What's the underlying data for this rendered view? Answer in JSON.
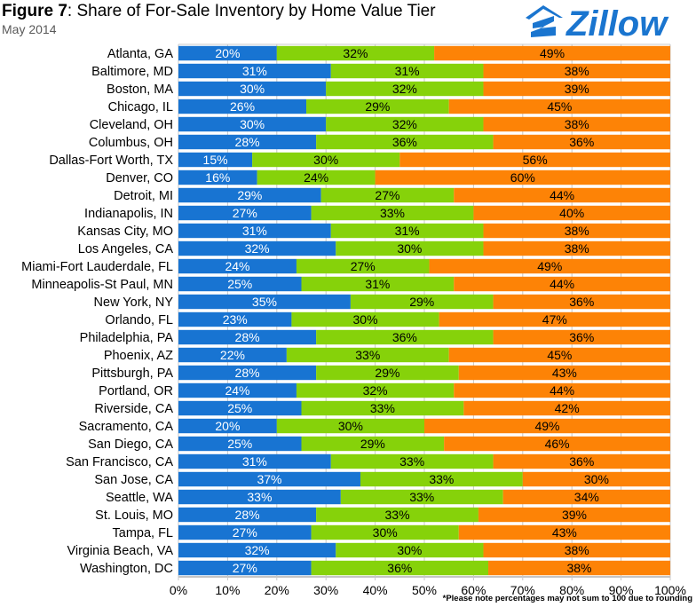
{
  "header": {
    "figure_label": "Figure 7",
    "title_rest": ": Share of For-Sale Inventory by Home Value Tier",
    "subtitle": "May 2014"
  },
  "logo": {
    "text": "Zillow",
    "color": "#1a75cf",
    "icon": "zillow-house-icon"
  },
  "footnote": "*Please note percentages may not sum to 100 due to rounding",
  "colors": {
    "bottom": "#1874d2",
    "middle": "#86d20a",
    "top": "#fd8306",
    "grid": "#c8c8c8"
  },
  "chart_data": {
    "type": "bar",
    "orientation": "horizontal",
    "stacked": true,
    "categories": [
      "Atlanta, GA",
      "Baltimore, MD",
      "Boston, MA",
      "Chicago, IL",
      "Cleveland, OH",
      "Columbus, OH",
      "Dallas-Fort Worth, TX",
      "Denver, CO",
      "Detroit, MI",
      "Indianapolis, IN",
      "Kansas City, MO",
      "Los Angeles, CA",
      "Miami-Fort Lauderdale, FL",
      "Minneapolis-St Paul, MN",
      "New York, NY",
      "Orlando, FL",
      "Philadelphia, PA",
      "Phoenix, AZ",
      "Pittsburgh, PA",
      "Portland, OR",
      "Riverside, CA",
      "Sacramento, CA",
      "San Diego, CA",
      "San Francisco, CA",
      "San Jose, CA",
      "Seattle, WA",
      "St. Louis, MO",
      "Tampa, FL",
      "Virginia Beach, VA",
      "Washington, DC"
    ],
    "series": [
      {
        "values": [
          20,
          31,
          30,
          26,
          30,
          28,
          15,
          16,
          29,
          27,
          31,
          32,
          24,
          25,
          35,
          23,
          28,
          22,
          28,
          24,
          25,
          20,
          25,
          31,
          37,
          33,
          28,
          27,
          32,
          27
        ]
      },
      {
        "values": [
          32,
          31,
          32,
          29,
          32,
          36,
          30,
          24,
          27,
          33,
          31,
          30,
          27,
          31,
          29,
          30,
          36,
          33,
          29,
          32,
          33,
          30,
          29,
          33,
          33,
          33,
          33,
          30,
          30,
          36
        ]
      },
      {
        "values": [
          49,
          38,
          39,
          45,
          38,
          36,
          56,
          60,
          44,
          40,
          38,
          38,
          49,
          44,
          36,
          47,
          36,
          45,
          43,
          44,
          42,
          49,
          46,
          36,
          30,
          34,
          39,
          43,
          38,
          38
        ]
      }
    ],
    "xlim": [
      0,
      100
    ],
    "x_ticks": [
      "0%",
      "10%",
      "20%",
      "30%",
      "40%",
      "50%",
      "60%",
      "70%",
      "80%",
      "90%",
      "100%"
    ],
    "grid": true
  }
}
